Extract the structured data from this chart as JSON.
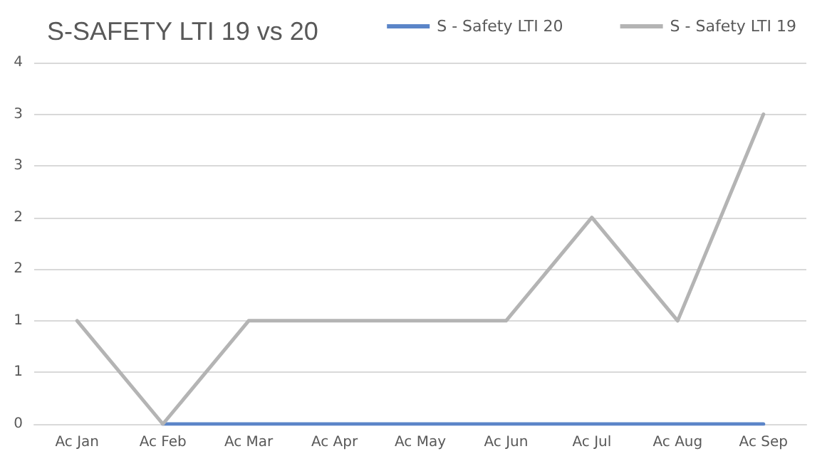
{
  "chart_data": {
    "type": "line",
    "title": "S-SAFETY LTI 19 vs 20",
    "categories": [
      "Ac Jan",
      "Ac Feb",
      "Ac Mar",
      "Ac Apr",
      "Ac May",
      "Ac Jun",
      "Ac Jul",
      "Ac Aug",
      "Ac Sep"
    ],
    "series": [
      {
        "name": "S - Safety LTI 20",
        "color": "#5b85c8",
        "values": [
          null,
          0,
          0,
          0,
          0,
          0,
          0,
          0,
          0
        ]
      },
      {
        "name": "S - Safety LTI 19",
        "color": "#b4b4b4",
        "values": [
          1,
          0,
          1,
          1,
          1,
          1,
          2,
          1,
          3
        ]
      }
    ],
    "ylim": [
      0,
      3.5
    ],
    "yticks": [
      0,
      {
        "value": 0.5,
        "label": "1"
      },
      1,
      {
        "value": 1.5,
        "label": "2"
      },
      2,
      {
        "value": 2.5,
        "label": "3"
      },
      3,
      {
        "value": 3.5,
        "label": "4"
      }
    ],
    "grid": "y",
    "legend": "top right",
    "marker": "none",
    "line_style": "solid"
  }
}
